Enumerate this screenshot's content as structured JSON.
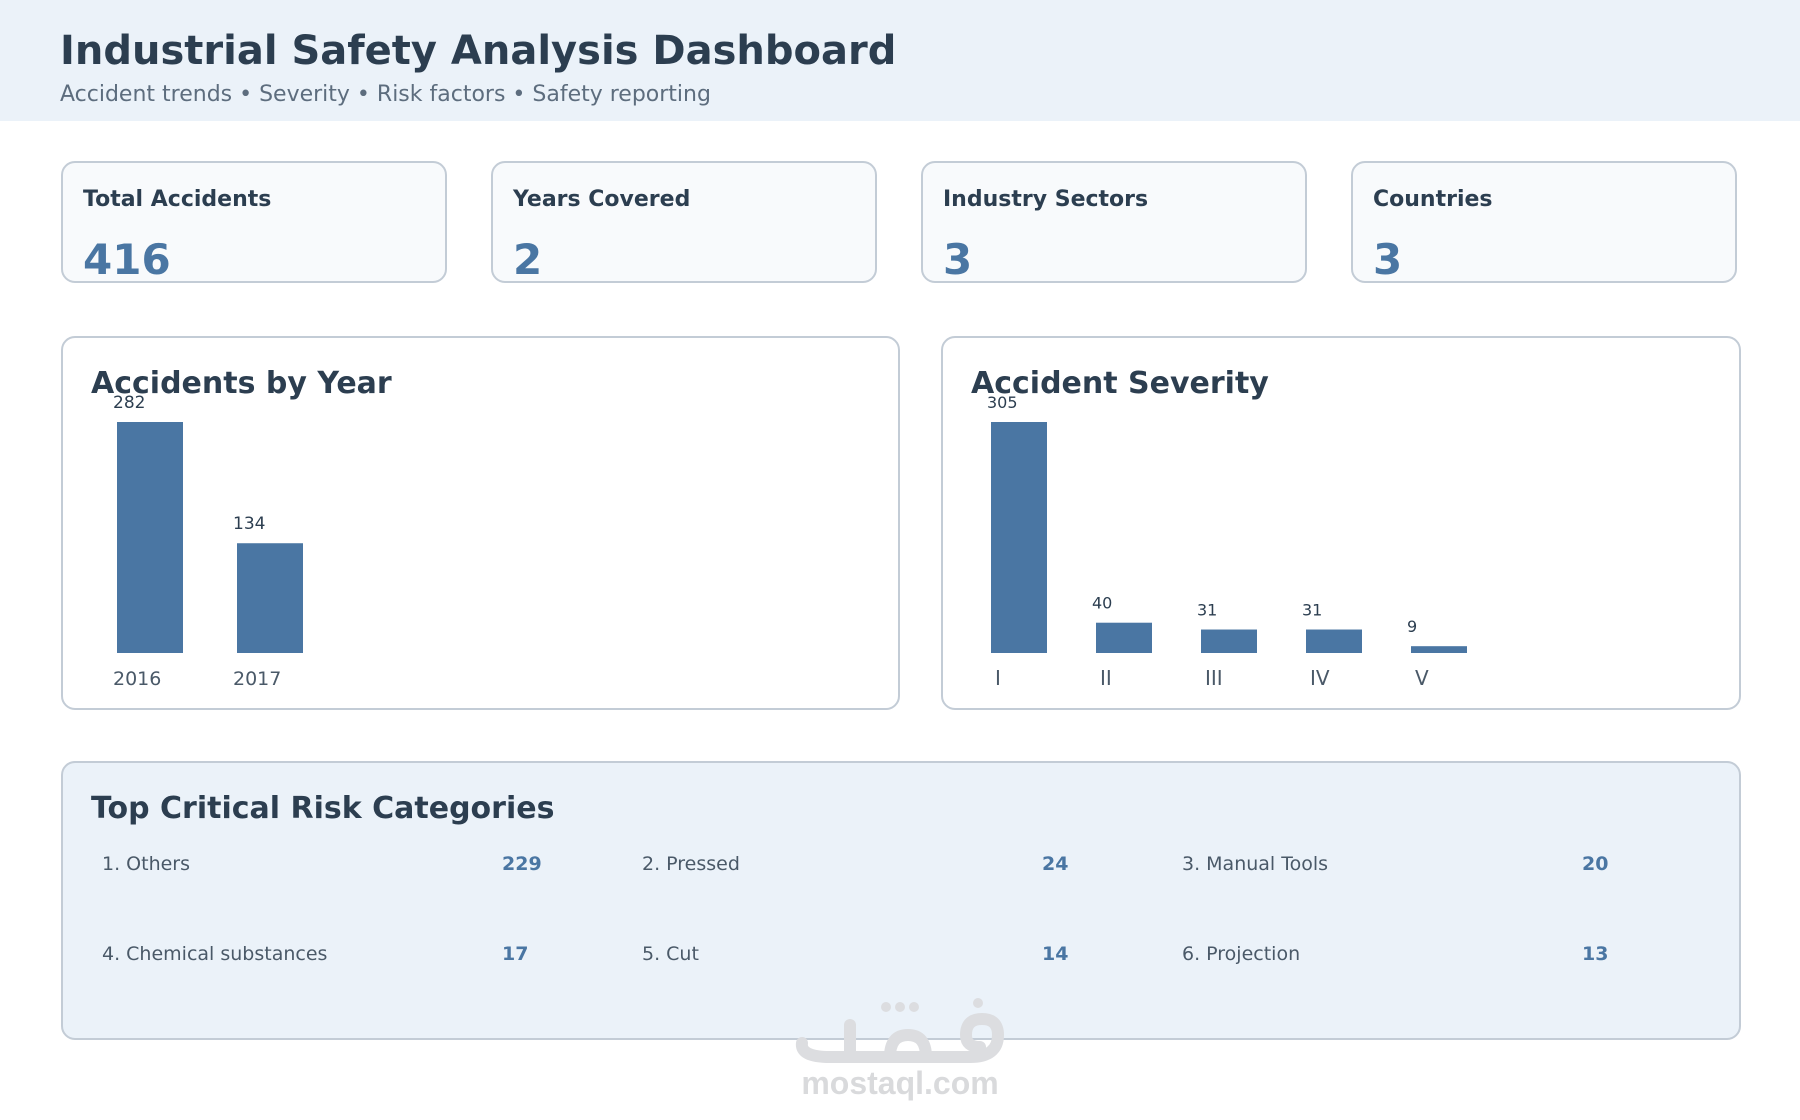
{
  "header": {
    "title": "Industrial Safety Analysis Dashboard",
    "subtitle": "Accident trends • Severity • Risk factors • Safety reporting"
  },
  "kpis": [
    {
      "label": "Total Accidents",
      "value": "416"
    },
    {
      "label": "Years Covered",
      "value": "2"
    },
    {
      "label": "Industry Sectors",
      "value": "3"
    },
    {
      "label": "Countries",
      "value": "3"
    }
  ],
  "chart_data": [
    {
      "type": "bar",
      "title": "Accidents by Year",
      "categories": [
        "2016",
        "2017"
      ],
      "values": [
        282,
        134
      ],
      "color": "#4a76a3"
    },
    {
      "type": "bar",
      "title": "Accident Severity",
      "categories": [
        "I",
        "II",
        "III",
        "IV",
        "V"
      ],
      "values": [
        305,
        40,
        31,
        31,
        9
      ],
      "color": "#4a76a3"
    }
  ],
  "risk_panel": {
    "title": "Top Critical Risk Categories",
    "items": [
      {
        "name": "1. Others",
        "count": "229"
      },
      {
        "name": "2. Pressed",
        "count": "24"
      },
      {
        "name": "3. Manual Tools",
        "count": "20"
      },
      {
        "name": "4. Chemical substances",
        "count": "17"
      },
      {
        "name": "5. Cut",
        "count": "14"
      },
      {
        "name": "6. Projection",
        "count": "13"
      }
    ]
  },
  "watermark": {
    "text": "mostaql.com"
  },
  "colors": {
    "accent": "#4a76a3",
    "heading": "#2c3e50",
    "header_bg": "#ebf2f9",
    "border": "#c3ccd6"
  }
}
